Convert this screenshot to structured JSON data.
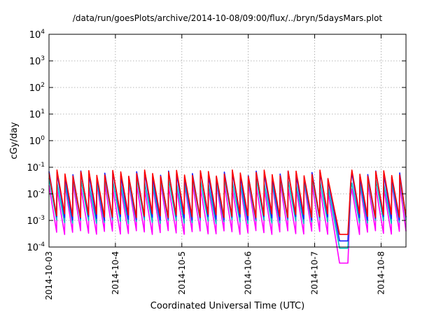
{
  "chart_data": {
    "type": "line",
    "title": "/data/run/goesPlots/archive/2014-10-08/09:00/flux/../bryn/5daysMars.plot",
    "xlabel": "Coordinated Universal Time (UTC)",
    "ylabel": "cGy/day",
    "yscale": "log",
    "ylim": [
      0.0001,
      10000
    ],
    "yticks": [
      {
        "base": "10",
        "exp": "-4",
        "value": 0.0001
      },
      {
        "base": "10",
        "exp": "-3",
        "value": 0.001
      },
      {
        "base": "10",
        "exp": "-2",
        "value": 0.01
      },
      {
        "base": "10",
        "exp": "-1",
        "value": 0.1
      },
      {
        "base": "10",
        "exp": "0",
        "value": 1
      },
      {
        "base": "10",
        "exp": "1",
        "value": 10
      },
      {
        "base": "10",
        "exp": "2",
        "value": 100
      },
      {
        "base": "10",
        "exp": "3",
        "value": 1000
      },
      {
        "base": "10",
        "exp": "4",
        "value": 10000
      }
    ],
    "xlim": [
      "2014-10-03T00:00",
      "2014-10-08T09:00"
    ],
    "xticks": [
      "2014-10-03",
      "2014-10-4",
      "2014-10-5",
      "2014-10-6",
      "2014-10-7",
      "2014-10-8"
    ],
    "grid": true,
    "legend": "none",
    "pattern": {
      "description": "sawtooth, each series peaks then decays over each period",
      "period_hours": 2.88,
      "data_gap": [
        "2014-10-07T07:00",
        "2014-10-07T13:00"
      ]
    },
    "series": [
      {
        "color": "#ff0000",
        "peak": 0.06,
        "trough": 0.0015
      },
      {
        "color": "#1a1aff",
        "peak": 0.055,
        "trough": 0.0012
      },
      {
        "color": "#00bfbf",
        "peak": 0.03,
        "trough": 0.0009
      },
      {
        "color": "#ff00ff",
        "peak": 0.02,
        "trough": 0.00035
      }
    ]
  }
}
